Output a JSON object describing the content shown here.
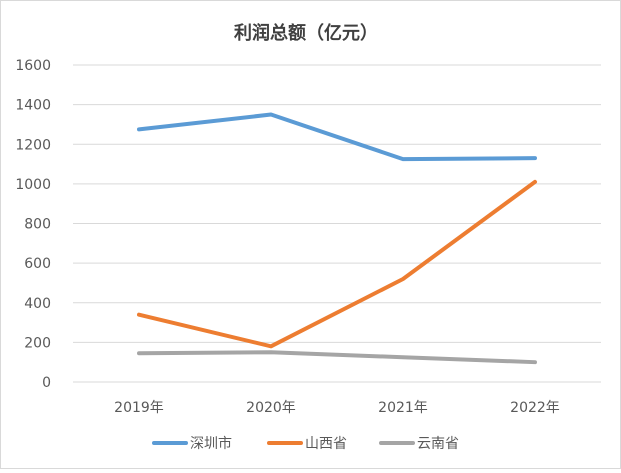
{
  "chart_data": {
    "type": "line",
    "title": "利润总额（亿元）",
    "xlabel": "",
    "ylabel": "",
    "categories": [
      "2019年",
      "2020年",
      "2021年",
      "2022年"
    ],
    "ylim": [
      0,
      1600
    ],
    "yticks": [
      0,
      200,
      400,
      600,
      800,
      1000,
      1200,
      1400,
      1600
    ],
    "grid": true,
    "legend_position": "bottom",
    "series": [
      {
        "name": "深圳市",
        "color": "#5B9BD5",
        "values": [
          1275,
          1350,
          1125,
          1130
        ]
      },
      {
        "name": "山西省",
        "color": "#ED7D31",
        "values": [
          340,
          180,
          520,
          1010
        ]
      },
      {
        "name": "云南省",
        "color": "#A5A5A5",
        "values": [
          145,
          150,
          125,
          100
        ]
      }
    ]
  }
}
